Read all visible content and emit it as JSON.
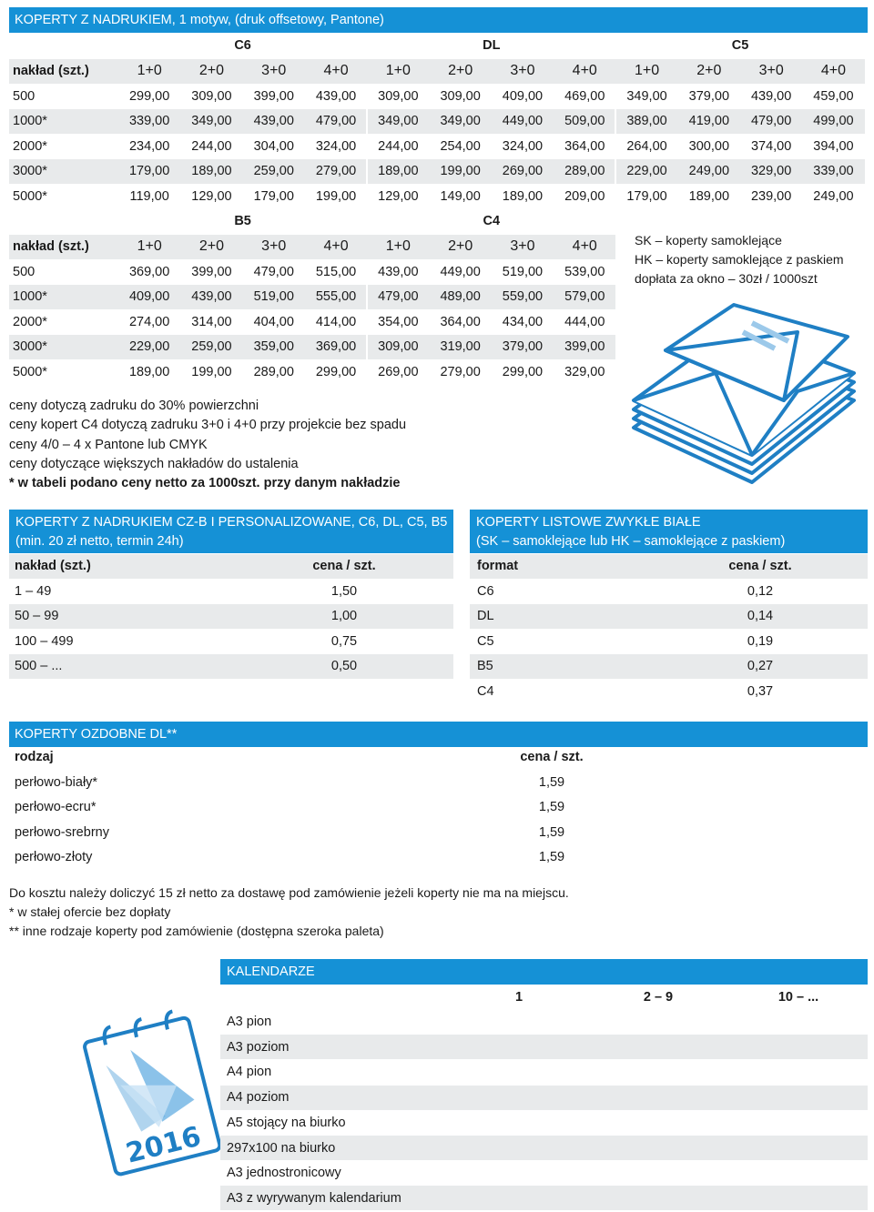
{
  "section1": {
    "title": "KOPERTY Z NADRUKIEM, 1 motyw, (druk offsetowy, Pantone)",
    "groups": [
      "C6",
      "DL",
      "C5"
    ],
    "headers": [
      "nakład (szt.)",
      "1+0",
      "2+0",
      "3+0",
      "4+0",
      "1+0",
      "2+0",
      "3+0",
      "4+0",
      "1+0",
      "2+0",
      "3+0",
      "4+0"
    ],
    "rows": [
      [
        "500",
        "299,00",
        "309,00",
        "399,00",
        "439,00",
        "309,00",
        "309,00",
        "409,00",
        "469,00",
        "349,00",
        "379,00",
        "439,00",
        "459,00"
      ],
      [
        "1000*",
        "339,00",
        "349,00",
        "439,00",
        "479,00",
        "349,00",
        "349,00",
        "449,00",
        "509,00",
        "389,00",
        "419,00",
        "479,00",
        "499,00"
      ],
      [
        "2000*",
        "234,00",
        "244,00",
        "304,00",
        "324,00",
        "244,00",
        "254,00",
        "324,00",
        "364,00",
        "264,00",
        "300,00",
        "374,00",
        "394,00"
      ],
      [
        "3000*",
        "179,00",
        "189,00",
        "259,00",
        "279,00",
        "189,00",
        "199,00",
        "269,00",
        "289,00",
        "229,00",
        "249,00",
        "329,00",
        "339,00"
      ],
      [
        "5000*",
        "119,00",
        "129,00",
        "179,00",
        "199,00",
        "129,00",
        "149,00",
        "189,00",
        "209,00",
        "179,00",
        "189,00",
        "239,00",
        "249,00"
      ]
    ]
  },
  "section1b": {
    "groups": [
      "B5",
      "C4"
    ],
    "headers": [
      "nakład (szt.)",
      "1+0",
      "2+0",
      "3+0",
      "4+0",
      "1+0",
      "2+0",
      "3+0",
      "4+0"
    ],
    "rows": [
      [
        "500",
        "369,00",
        "399,00",
        "479,00",
        "515,00",
        "439,00",
        "449,00",
        "519,00",
        "539,00"
      ],
      [
        "1000*",
        "409,00",
        "439,00",
        "519,00",
        "555,00",
        "479,00",
        "489,00",
        "559,00",
        "579,00"
      ],
      [
        "2000*",
        "274,00",
        "314,00",
        "404,00",
        "414,00",
        "354,00",
        "364,00",
        "434,00",
        "444,00"
      ],
      [
        "3000*",
        "229,00",
        "259,00",
        "359,00",
        "369,00",
        "309,00",
        "319,00",
        "379,00",
        "399,00"
      ],
      [
        "5000*",
        "189,00",
        "199,00",
        "289,00",
        "299,00",
        "269,00",
        "279,00",
        "299,00",
        "329,00"
      ]
    ]
  },
  "legend": [
    "SK – koperty samoklejące",
    "HK – koperty samoklejące z paskiem",
    "dopłata za okno – 30zł / 1000szt"
  ],
  "notes": [
    "ceny dotyczą zadruku do 30% powierzchni",
    "ceny kopert C4 dotyczą zadruku 3+0 i 4+0 przy projekcie bez spadu",
    "ceny 4/0 – 4 x Pantone lub CMYK",
    "ceny dotyczące większych nakładów do ustalenia",
    "* w tabeli podano ceny netto za 1000szt. przy danym nakładzie"
  ],
  "section2": {
    "title": [
      "KOPERTY Z NADRUKIEM CZ-B I PERSONALIZOWANE, C6, DL, C5, B5",
      "(min. 20 zł netto, termin 24h)"
    ],
    "headers": [
      "nakład (szt.)",
      "cena / szt."
    ],
    "rows": [
      [
        "1 – 49",
        "1,50"
      ],
      [
        "50 – 99",
        "1,00"
      ],
      [
        "100 – 499",
        "0,75"
      ],
      [
        "500 – ...",
        "0,50"
      ]
    ]
  },
  "section4": {
    "title": [
      "KOPERTY LISTOWE ZWYKŁE BIAŁE",
      "(SK – samoklejące lub HK – samoklejące z paskiem)"
    ],
    "headers": [
      "format",
      "cena / szt."
    ],
    "rows": [
      [
        "C6",
        "0,12"
      ],
      [
        "DL",
        "0,14"
      ],
      [
        "C5",
        "0,19"
      ],
      [
        "B5",
        "0,27"
      ],
      [
        "C4",
        "0,37"
      ]
    ]
  },
  "section3": {
    "title": "KOPERTY OZDOBNE DL**",
    "headers": [
      "rodzaj",
      "cena / szt."
    ],
    "rows": [
      [
        "perłowo-biały*",
        "1,59"
      ],
      [
        "perłowo-ecru*",
        "1,59"
      ],
      [
        "perłowo-srebrny",
        "1,59"
      ],
      [
        "perłowo-złoty",
        "1,59"
      ]
    ]
  },
  "footnotes": [
    "Do kosztu należy doliczyć 15 zł netto za dostawę pod zamówienie jeżeli koperty nie ma na miejscu.",
    "* w stałej ofercie bez dopłaty",
    "** inne rodzaje koperty pod zamówienie (dostępna szeroka paleta)"
  ],
  "calendar": {
    "title": "KALENDARZE",
    "headers": [
      "1",
      "2 – 9",
      "10 – ..."
    ],
    "rows": [
      "A3 pion",
      "A3 poziom",
      "A4 pion",
      "A4 poziom",
      "A5 stojący na biurko",
      "297x100 na biurko",
      "A3 jednostronicowy",
      "A3 z wyrywanym kalendarium"
    ],
    "year": "2016"
  }
}
